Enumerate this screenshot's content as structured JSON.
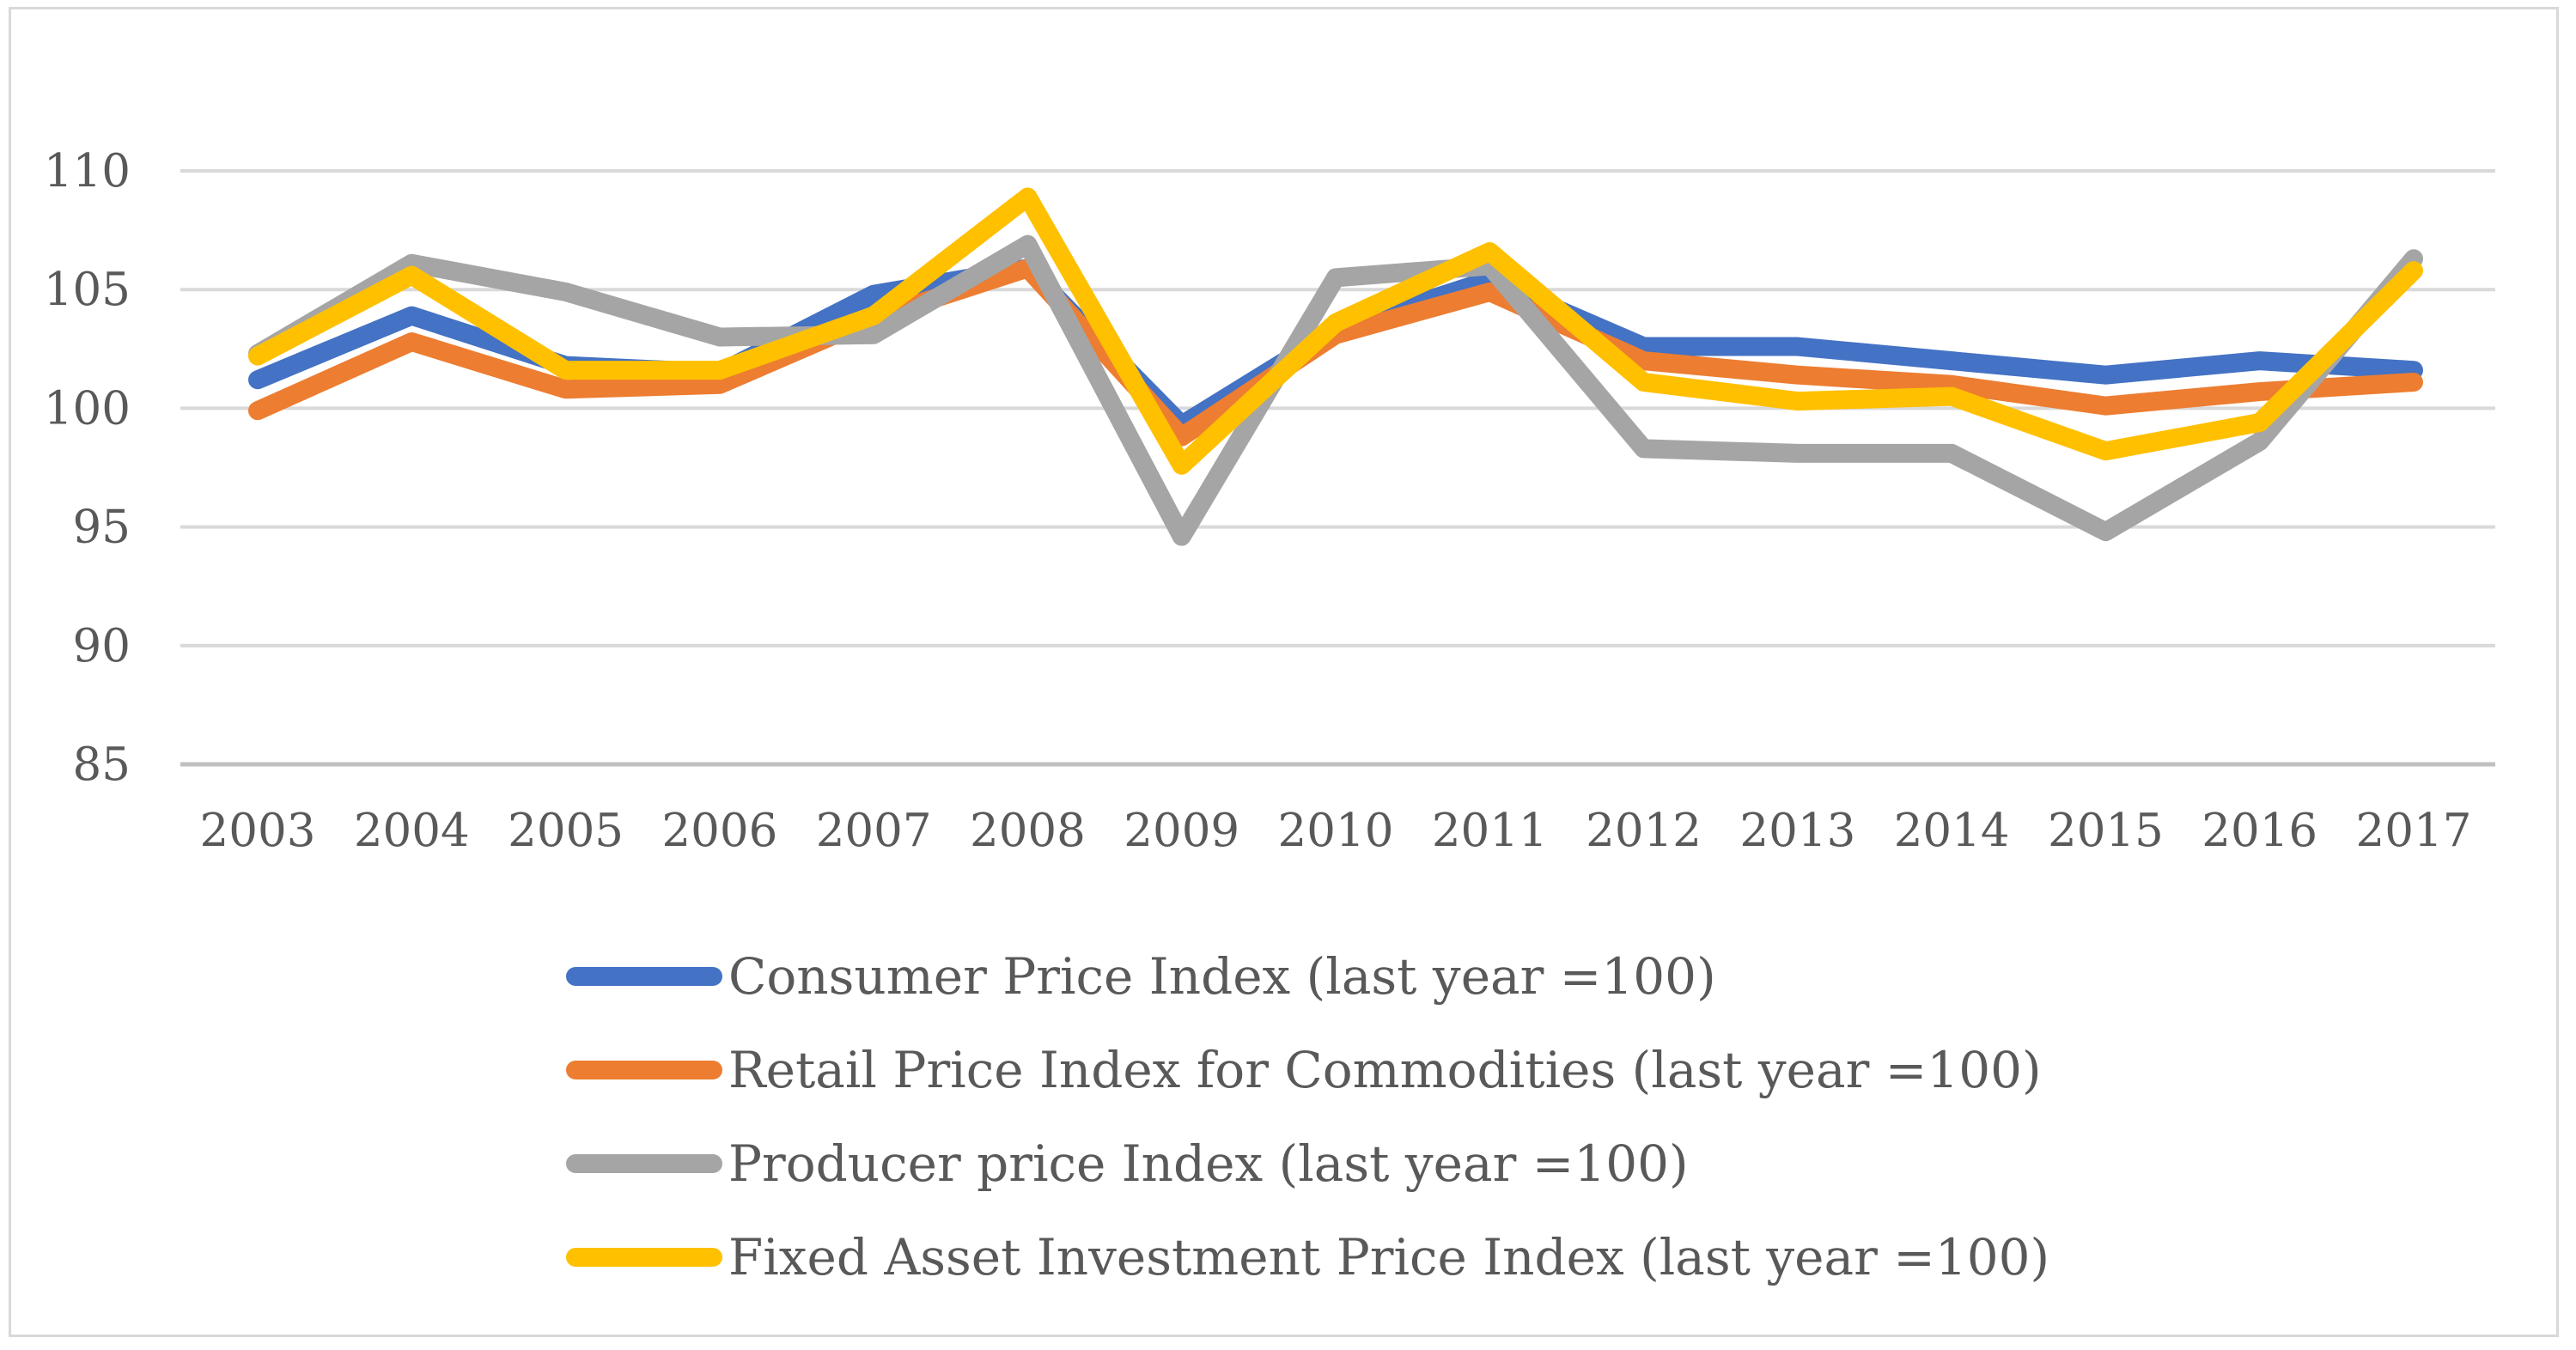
{
  "chart_data": {
    "type": "line",
    "title": "",
    "xlabel": "",
    "ylabel": "",
    "ylim": [
      85,
      110
    ],
    "yticks": [
      85,
      90,
      95,
      100,
      105,
      110
    ],
    "grid": true,
    "legend_position": "bottom",
    "categories": [
      "2003",
      "2004",
      "2005",
      "2006",
      "2007",
      "2008",
      "2009",
      "2010",
      "2011",
      "2012",
      "2013",
      "2014",
      "2015",
      "2016",
      "2017"
    ],
    "series": [
      {
        "name": "Consumer Price Index (last year =100)",
        "color": "#4472C4",
        "values": [
          101.2,
          103.9,
          101.8,
          101.5,
          104.8,
          105.9,
          99.3,
          103.3,
          105.4,
          102.6,
          102.6,
          102.0,
          101.4,
          102.0,
          101.6
        ]
      },
      {
        "name": "Retail Price Index for Commodities (last year =100)",
        "color": "#ED7D31",
        "values": [
          99.9,
          102.8,
          100.8,
          101.0,
          103.8,
          105.9,
          98.8,
          103.1,
          104.9,
          102.0,
          101.4,
          101.0,
          100.1,
          100.7,
          101.1
        ]
      },
      {
        "name": "Producer price Index (last year =100)",
        "color": "#A5A5A5",
        "values": [
          102.3,
          106.1,
          104.9,
          103.0,
          103.1,
          106.9,
          94.6,
          105.5,
          106.0,
          98.3,
          98.1,
          98.1,
          94.8,
          98.6,
          106.3
        ]
      },
      {
        "name": "Fixed Asset Investment Price Index (last year =100)",
        "color": "#FFC000",
        "values": [
          102.2,
          105.6,
          101.6,
          101.6,
          103.9,
          108.9,
          97.6,
          103.6,
          106.6,
          101.1,
          100.3,
          100.5,
          98.2,
          99.4,
          105.8
        ]
      }
    ]
  }
}
